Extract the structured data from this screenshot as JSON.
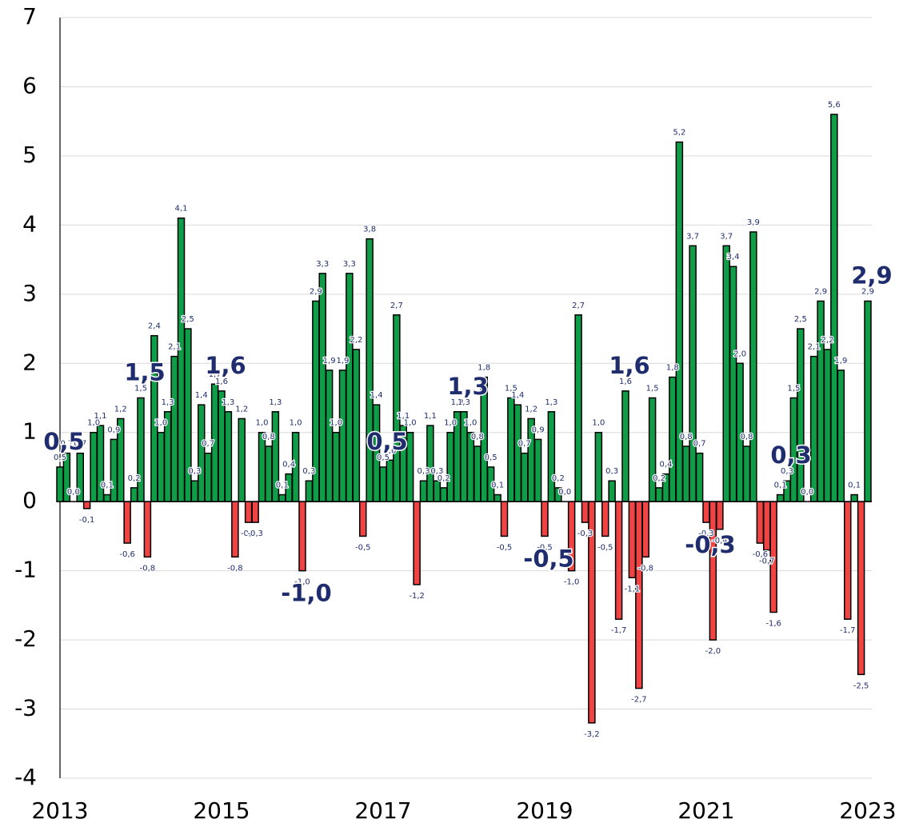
{
  "chart_data": {
    "type": "bar",
    "x": [
      2013,
      2013.083,
      2013.167,
      2013.25,
      2013.333,
      2013.417,
      2013.5,
      2013.583,
      2013.667,
      2013.75,
      2013.833,
      2013.917,
      2014,
      2014.083,
      2014.167,
      2014.25,
      2014.333,
      2014.417,
      2014.5,
      2014.583,
      2014.667,
      2014.75,
      2014.833,
      2014.917,
      2015,
      2015.083,
      2015.167,
      2015.25,
      2015.333,
      2015.417,
      2015.5,
      2015.583,
      2015.667,
      2015.75,
      2015.833,
      2015.917,
      2016,
      2016.083,
      2016.167,
      2016.25,
      2016.333,
      2016.417,
      2016.5,
      2016.583,
      2016.667,
      2016.75,
      2016.833,
      2016.917,
      2017,
      2017.083,
      2017.167,
      2017.25,
      2017.333,
      2017.417,
      2017.5,
      2017.583,
      2017.667,
      2017.75,
      2017.833,
      2017.917,
      2018,
      2018.083,
      2018.167,
      2018.25,
      2018.333,
      2018.417,
      2018.5,
      2018.583,
      2018.667,
      2018.75,
      2018.833,
      2018.917,
      2019,
      2019.083,
      2019.167,
      2019.25,
      2019.333,
      2019.417,
      2019.5,
      2019.583,
      2019.667,
      2019.75,
      2019.833,
      2019.917,
      2020,
      2020.083,
      2020.167,
      2020.25,
      2020.333,
      2020.417,
      2020.5,
      2020.583,
      2020.667,
      2020.75,
      2020.833,
      2020.917,
      2021,
      2021.083,
      2021.167,
      2021.25,
      2021.333,
      2021.417,
      2021.5,
      2021.583,
      2021.667,
      2021.75,
      2021.833,
      2021.917,
      2022,
      2022.083,
      2022.167,
      2022.25,
      2022.333,
      2022.417,
      2022.5,
      2022.583,
      2022.667,
      2022.75,
      2022.833,
      2022.917,
      2023
    ],
    "values": [
      0.5,
      0.7,
      0.0,
      0.7,
      -0.1,
      1.0,
      1.1,
      0.1,
      0.9,
      1.2,
      -0.6,
      0.2,
      1.5,
      -0.8,
      2.4,
      1.0,
      1.3,
      2.1,
      4.1,
      2.5,
      0.3,
      1.4,
      0.7,
      1.7,
      1.6,
      1.3,
      -0.8,
      1.2,
      -0.3,
      -0.3,
      1.0,
      0.8,
      1.3,
      0.1,
      0.4,
      1.0,
      -1.0,
      0.3,
      2.9,
      3.3,
      1.9,
      1.0,
      1.9,
      3.3,
      2.2,
      -0.5,
      3.8,
      1.4,
      0.5,
      0.6,
      2.7,
      1.1,
      1.0,
      -1.2,
      0.3,
      1.1,
      0.3,
      0.2,
      1.0,
      1.3,
      1.3,
      1.0,
      0.8,
      1.8,
      0.5,
      0.1,
      -0.5,
      1.5,
      1.4,
      0.7,
      1.2,
      0.9,
      -0.5,
      1.3,
      0.2,
      0.0,
      -1.0,
      2.7,
      -0.3,
      -3.2,
      1.0,
      -0.5,
      0.3,
      -1.7,
      1.6,
      -1.1,
      -2.7,
      -0.8,
      1.5,
      0.2,
      0.4,
      1.8,
      5.2,
      0.8,
      3.7,
      0.7,
      -0.3,
      -2.0,
      -0.4,
      3.7,
      3.4,
      2.0,
      0.8,
      3.9,
      -0.6,
      -0.7,
      -1.6,
      0.1,
      0.3,
      1.5,
      2.5,
      0.0,
      2.1,
      2.9,
      2.2,
      5.6,
      1.9,
      -1.7,
      0.1,
      -2.5,
      2.9
    ],
    "value_labels": [
      "0,5",
      "0,7",
      "0,0",
      "0,7",
      "-0,1",
      "1,0",
      "1,1",
      "0,1",
      "0,9",
      "1,2",
      "-0,6",
      "0,2",
      "1,5",
      "-0,8",
      "2,4",
      "1,0",
      "1,3",
      "2,1",
      "4,1",
      "2,5",
      "0,3",
      "1,4",
      "0,7",
      "1,7",
      "1,6",
      "1,3",
      "-0,8",
      "1,2",
      "-0,3",
      "-0,3",
      "1,0",
      "0,8",
      "1,3",
      "0,1",
      "0,4",
      "1,0",
      "-1,0",
      "0,3",
      "2,9",
      "3,3",
      "1,9",
      "1,0",
      "1,9",
      "3,3",
      "2,2",
      "-0,5",
      "3,8",
      "1,4",
      "0,5",
      "0,6",
      "2,7",
      "1,1",
      "1,0",
      "-1,2",
      "0,3",
      "1,1",
      "0,3",
      "0,2",
      "1,0",
      "1,3",
      "1,3",
      "1,0",
      "0,8",
      "1,8",
      "0,5",
      "0,1",
      "-0,5",
      "1,5",
      "1,4",
      "0,7",
      "1,2",
      "0,9",
      "-0,5",
      "1,3",
      "0,2",
      "0,0",
      "-1,0",
      "2,7",
      "-0,3",
      "-3,2",
      "1,0",
      "-0,5",
      "0,3",
      "-1,7",
      "1,6",
      "-1,1",
      "-2,7",
      "-0,8",
      "1,5",
      "0,2",
      "0,4",
      "1,8",
      "5,2",
      "0,8",
      "3,7",
      "0,7",
      "-0,3",
      "-2,0",
      "-0,4",
      "3,7",
      "3,4",
      "2,0",
      "0,8",
      "3,9",
      "-0,6",
      "-0,7",
      "-1,6",
      "0,1",
      "0,3",
      "1,5",
      "2,5",
      "0,0",
      "2,1",
      "2,9",
      "2,2",
      "5,6",
      "1,9",
      "-1,7",
      "0,1",
      "-2,5",
      "2,9"
    ],
    "color": "#0f9d48",
    "negative_color": "#f04444",
    "annotations": [
      {
        "x": 2013,
        "value": 0.5,
        "label": "0,5"
      },
      {
        "x": 2014,
        "value": 1.5,
        "label": "1,5"
      },
      {
        "x": 2015,
        "value": 1.6,
        "label": "1,6"
      },
      {
        "x": 2016,
        "value": -1.0,
        "label": "-1,0"
      },
      {
        "x": 2017,
        "value": 0.5,
        "label": "0,5"
      },
      {
        "x": 2018,
        "value": 1.3,
        "label": "1,3"
      },
      {
        "x": 2019,
        "value": -0.5,
        "label": "-0,5"
      },
      {
        "x": 2020,
        "value": 1.6,
        "label": "1,6"
      },
      {
        "x": 2021,
        "value": -0.3,
        "label": "-0,3"
      },
      {
        "x": 2022,
        "value": 0.3,
        "label": "0,3"
      },
      {
        "x": 2023,
        "value": 2.9,
        "label": "2,9"
      }
    ],
    "xlim": [
      2013,
      2023
    ],
    "xticks": [
      2013,
      2015,
      2017,
      2019,
      2021,
      2023
    ],
    "ylim": [
      -4,
      7
    ],
    "yticks": [
      -4,
      -3,
      -2,
      -1,
      0,
      1,
      2,
      3,
      4,
      5,
      6,
      7
    ],
    "grid": true
  }
}
